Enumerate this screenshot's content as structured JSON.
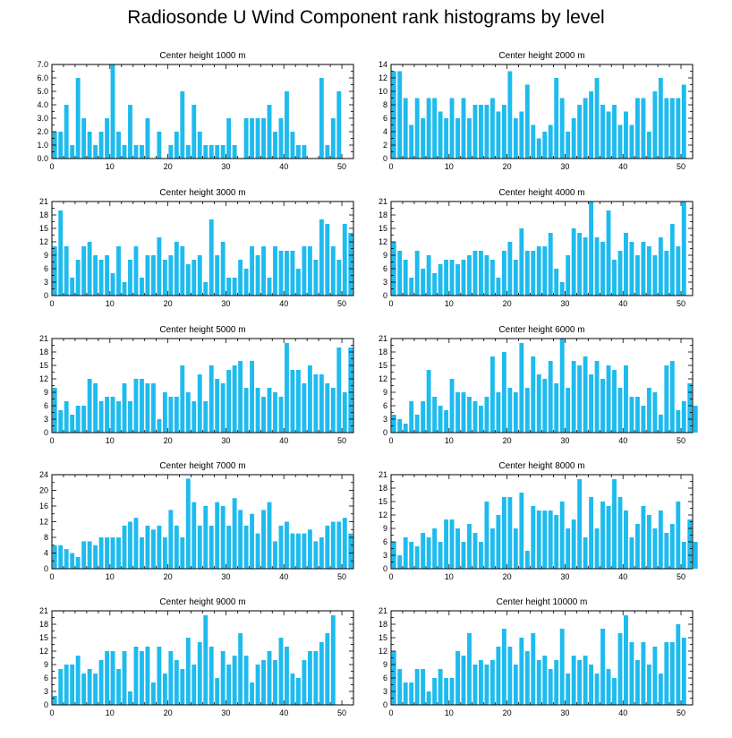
{
  "title": "Radiosonde U Wind Component rank histograms by level",
  "bar_color": "#1ebbee",
  "chart_data": [
    {
      "type": "bar",
      "title": "Center height 1000 m",
      "xlim": [
        0,
        52
      ],
      "xticks": [
        0,
        10,
        20,
        30,
        40,
        50
      ],
      "ylim": [
        0,
        7
      ],
      "yticks": [
        "0.0",
        "1.0",
        "2.0",
        "3.0",
        "4.0",
        "5.0",
        "6.0",
        "7.0"
      ],
      "values": [
        2,
        2,
        4,
        1,
        6,
        3,
        2,
        1,
        2,
        3,
        7,
        2,
        1,
        4,
        1,
        1,
        3,
        0,
        2,
        0,
        1,
        2,
        5,
        1,
        4,
        2,
        1,
        1,
        1,
        1,
        3,
        1,
        0,
        3,
        3,
        3,
        3,
        4,
        2,
        3,
        5,
        2,
        1,
        1,
        0,
        0,
        6,
        1,
        3,
        5
      ]
    },
    {
      "type": "bar",
      "title": "Center height 2000 m",
      "xlim": [
        0,
        52
      ],
      "xticks": [
        0,
        10,
        20,
        30,
        40,
        50
      ],
      "ylim": [
        0,
        14
      ],
      "yticks": [
        "0",
        "2",
        "4",
        "6",
        "8",
        "10",
        "12",
        "14"
      ],
      "values": [
        13,
        13,
        9,
        5,
        9,
        6,
        9,
        9,
        7,
        6,
        9,
        6,
        9,
        6,
        8,
        8,
        8,
        9,
        7,
        8,
        13,
        6,
        7,
        11,
        5,
        3,
        4,
        5,
        12,
        9,
        4,
        6,
        8,
        9,
        10,
        12,
        8,
        7,
        8,
        5,
        7,
        5,
        9,
        9,
        4,
        10,
        12,
        9,
        9,
        9,
        11
      ]
    },
    {
      "type": "bar",
      "title": "Center height 3000 m",
      "xlim": [
        0,
        52
      ],
      "xticks": [
        0,
        10,
        20,
        30,
        40,
        50
      ],
      "ylim": [
        0,
        21
      ],
      "yticks": [
        "0",
        "3",
        "6",
        "9",
        "12",
        "15",
        "18",
        "21"
      ],
      "values": [
        11,
        19,
        11,
        4,
        8,
        11,
        12,
        9,
        8,
        9,
        5,
        11,
        3,
        8,
        11,
        4,
        9,
        9,
        13,
        8,
        9,
        12,
        11,
        7,
        8,
        9,
        3,
        17,
        9,
        12,
        4,
        4,
        8,
        6,
        11,
        9,
        11,
        4,
        11,
        10,
        10,
        10,
        6,
        11,
        11,
        8,
        17,
        16,
        11,
        8,
        16,
        14
      ]
    },
    {
      "type": "bar",
      "title": "Center height 4000 m",
      "xlim": [
        0,
        52
      ],
      "xticks": [
        0,
        10,
        20,
        30,
        40,
        50
      ],
      "ylim": [
        0,
        21
      ],
      "yticks": [
        "0",
        "3",
        "6",
        "9",
        "12",
        "15",
        "18",
        "21"
      ],
      "values": [
        12,
        10,
        8,
        4,
        10,
        6,
        9,
        5,
        7,
        8,
        8,
        7,
        8,
        9,
        10,
        10,
        9,
        8,
        4,
        10,
        12,
        8,
        15,
        10,
        10,
        11,
        11,
        14,
        6,
        3,
        9,
        15,
        14,
        13,
        21,
        13,
        12,
        19,
        8,
        10,
        14,
        12,
        9,
        12,
        11,
        9,
        13,
        10,
        16,
        11,
        21
      ]
    },
    {
      "type": "bar",
      "title": "Center height 5000 m",
      "xlim": [
        0,
        52
      ],
      "xticks": [
        0,
        10,
        20,
        30,
        40,
        50
      ],
      "ylim": [
        0,
        21
      ],
      "yticks": [
        "0",
        "3",
        "6",
        "9",
        "12",
        "15",
        "18",
        "21"
      ],
      "values": [
        10,
        5,
        7,
        4,
        6,
        6,
        12,
        11,
        7,
        8,
        8,
        7,
        11,
        7,
        12,
        12,
        11,
        11,
        3,
        9,
        8,
        8,
        15,
        9,
        7,
        13,
        7,
        15,
        12,
        11,
        14,
        15,
        16,
        10,
        16,
        10,
        8,
        10,
        9,
        8,
        20,
        14,
        14,
        11,
        15,
        13,
        13,
        11,
        10,
        19,
        9,
        19
      ]
    },
    {
      "type": "bar",
      "title": "Center height 6000 m",
      "xlim": [
        0,
        52
      ],
      "xticks": [
        0,
        10,
        20,
        30,
        40,
        50
      ],
      "ylim": [
        0,
        21
      ],
      "yticks": [
        "0",
        "3",
        "6",
        "9",
        "12",
        "15",
        "18",
        "21"
      ],
      "values": [
        4,
        3,
        2,
        7,
        4,
        7,
        14,
        8,
        6,
        5,
        12,
        9,
        9,
        8,
        7,
        6,
        8,
        17,
        9,
        18,
        10,
        9,
        20,
        10,
        17,
        13,
        12,
        16,
        11,
        21,
        10,
        16,
        15,
        17,
        13,
        16,
        12,
        15,
        14,
        10,
        15,
        8,
        8,
        6,
        10,
        9,
        4,
        15,
        16,
        5,
        7,
        11,
        6
      ]
    },
    {
      "type": "bar",
      "title": "Center height 7000 m",
      "xlim": [
        0,
        52
      ],
      "xticks": [
        0,
        10,
        20,
        30,
        40,
        50
      ],
      "ylim": [
        0,
        24
      ],
      "yticks": [
        "0",
        "4",
        "8",
        "12",
        "16",
        "20",
        "24"
      ],
      "values": [
        6,
        6,
        5,
        4,
        3,
        7,
        7,
        6,
        8,
        8,
        8,
        8,
        11,
        12,
        13,
        8,
        11,
        10,
        11,
        8,
        15,
        11,
        8,
        23,
        17,
        11,
        16,
        11,
        17,
        16,
        11,
        18,
        15,
        11,
        14,
        9,
        15,
        17,
        7,
        11,
        12,
        9,
        9,
        9,
        10,
        7,
        8,
        11,
        12,
        12,
        13,
        9
      ]
    },
    {
      "type": "bar",
      "title": "Center height 8000 m",
      "xlim": [
        0,
        52
      ],
      "xticks": [
        0,
        10,
        20,
        30,
        40,
        50
      ],
      "ylim": [
        0,
        21
      ],
      "yticks": [
        "0",
        "3",
        "6",
        "9",
        "12",
        "15",
        "18",
        "21"
      ],
      "values": [
        6,
        3,
        7,
        6,
        5,
        8,
        7,
        9,
        6,
        11,
        11,
        9,
        6,
        10,
        8,
        6,
        15,
        9,
        12,
        16,
        16,
        9,
        17,
        4,
        14,
        13,
        13,
        13,
        12,
        15,
        9,
        11,
        20,
        7,
        16,
        9,
        15,
        14,
        20,
        16,
        13,
        7,
        10,
        14,
        12,
        9,
        13,
        8,
        10,
        15,
        6,
        11,
        6
      ]
    },
    {
      "type": "bar",
      "title": "Center height 9000 m",
      "xlim": [
        0,
        52
      ],
      "xticks": [
        0,
        10,
        20,
        30,
        40,
        50
      ],
      "ylim": [
        0,
        21
      ],
      "yticks": [
        "0",
        "3",
        "6",
        "9",
        "12",
        "15",
        "18",
        "21"
      ],
      "values": [
        2,
        8,
        9,
        9,
        11,
        7,
        8,
        7,
        10,
        12,
        12,
        8,
        12,
        3,
        13,
        12,
        13,
        5,
        13,
        7,
        12,
        10,
        8,
        15,
        9,
        14,
        20,
        13,
        6,
        12,
        9,
        11,
        16,
        11,
        5,
        9,
        10,
        12,
        10,
        15,
        13,
        7,
        6,
        10,
        12,
        12,
        14,
        16,
        20
      ]
    },
    {
      "type": "bar",
      "title": "Center height 10000 m",
      "xlim": [
        0,
        52
      ],
      "xticks": [
        0,
        10,
        20,
        30,
        40,
        50
      ],
      "ylim": [
        0,
        21
      ],
      "yticks": [
        "0",
        "3",
        "6",
        "9",
        "12",
        "15",
        "18",
        "21"
      ],
      "values": [
        12,
        8,
        5,
        5,
        8,
        8,
        3,
        6,
        8,
        6,
        6,
        12,
        11,
        16,
        9,
        10,
        9,
        10,
        13,
        17,
        13,
        9,
        15,
        12,
        16,
        10,
        11,
        8,
        10,
        17,
        7,
        11,
        10,
        11,
        9,
        7,
        17,
        8,
        6,
        16,
        20,
        14,
        10,
        14,
        9,
        13,
        7,
        14,
        14,
        18,
        15
      ]
    }
  ]
}
